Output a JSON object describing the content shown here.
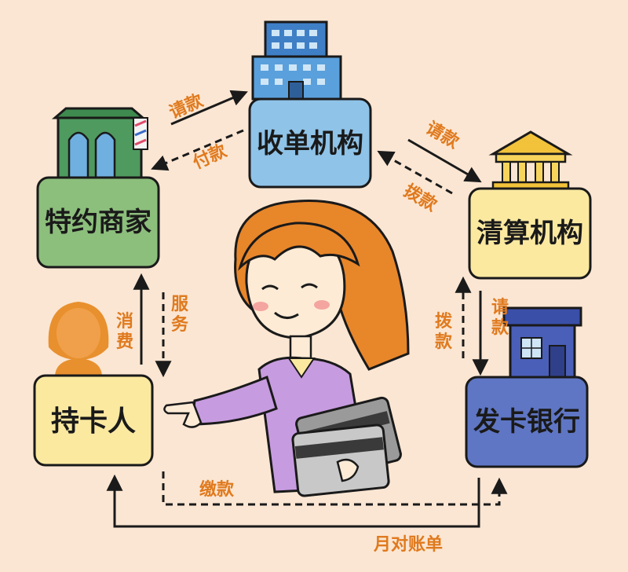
{
  "nodes": {
    "acquirer": "收单机构",
    "merchant": "特约商家",
    "clearing": "清算机构",
    "cardholder": "持卡人",
    "issuer": "发卡银行"
  },
  "edges": {
    "merchant_to_acquirer": "请款",
    "acquirer_to_merchant": "付款",
    "acquirer_to_clearing": "请款",
    "clearing_to_acquirer": "拨款",
    "clearing_to_issuer": "请款",
    "issuer_to_clearing": "拨款",
    "cardholder_to_merchant": "消费",
    "merchant_to_cardholder": "服务",
    "cardholder_to_issuer": "缴款",
    "issuer_to_cardholder": "月对账单"
  },
  "colors": {
    "background": "#fbe6d3",
    "acquirer_box": "#8fc3e8",
    "merchant_box": "#8cbe7c",
    "clearing_box": "#fbe9a0",
    "cardholder_box": "#fbe9a0",
    "issuer_box": "#5f76c4",
    "label_orange": "#e07a1e"
  },
  "icons": [
    "office-building-icon",
    "shop-icon",
    "bank-icon",
    "person-icon",
    "bank-branch-icon",
    "woman-with-cards-illustration"
  ]
}
